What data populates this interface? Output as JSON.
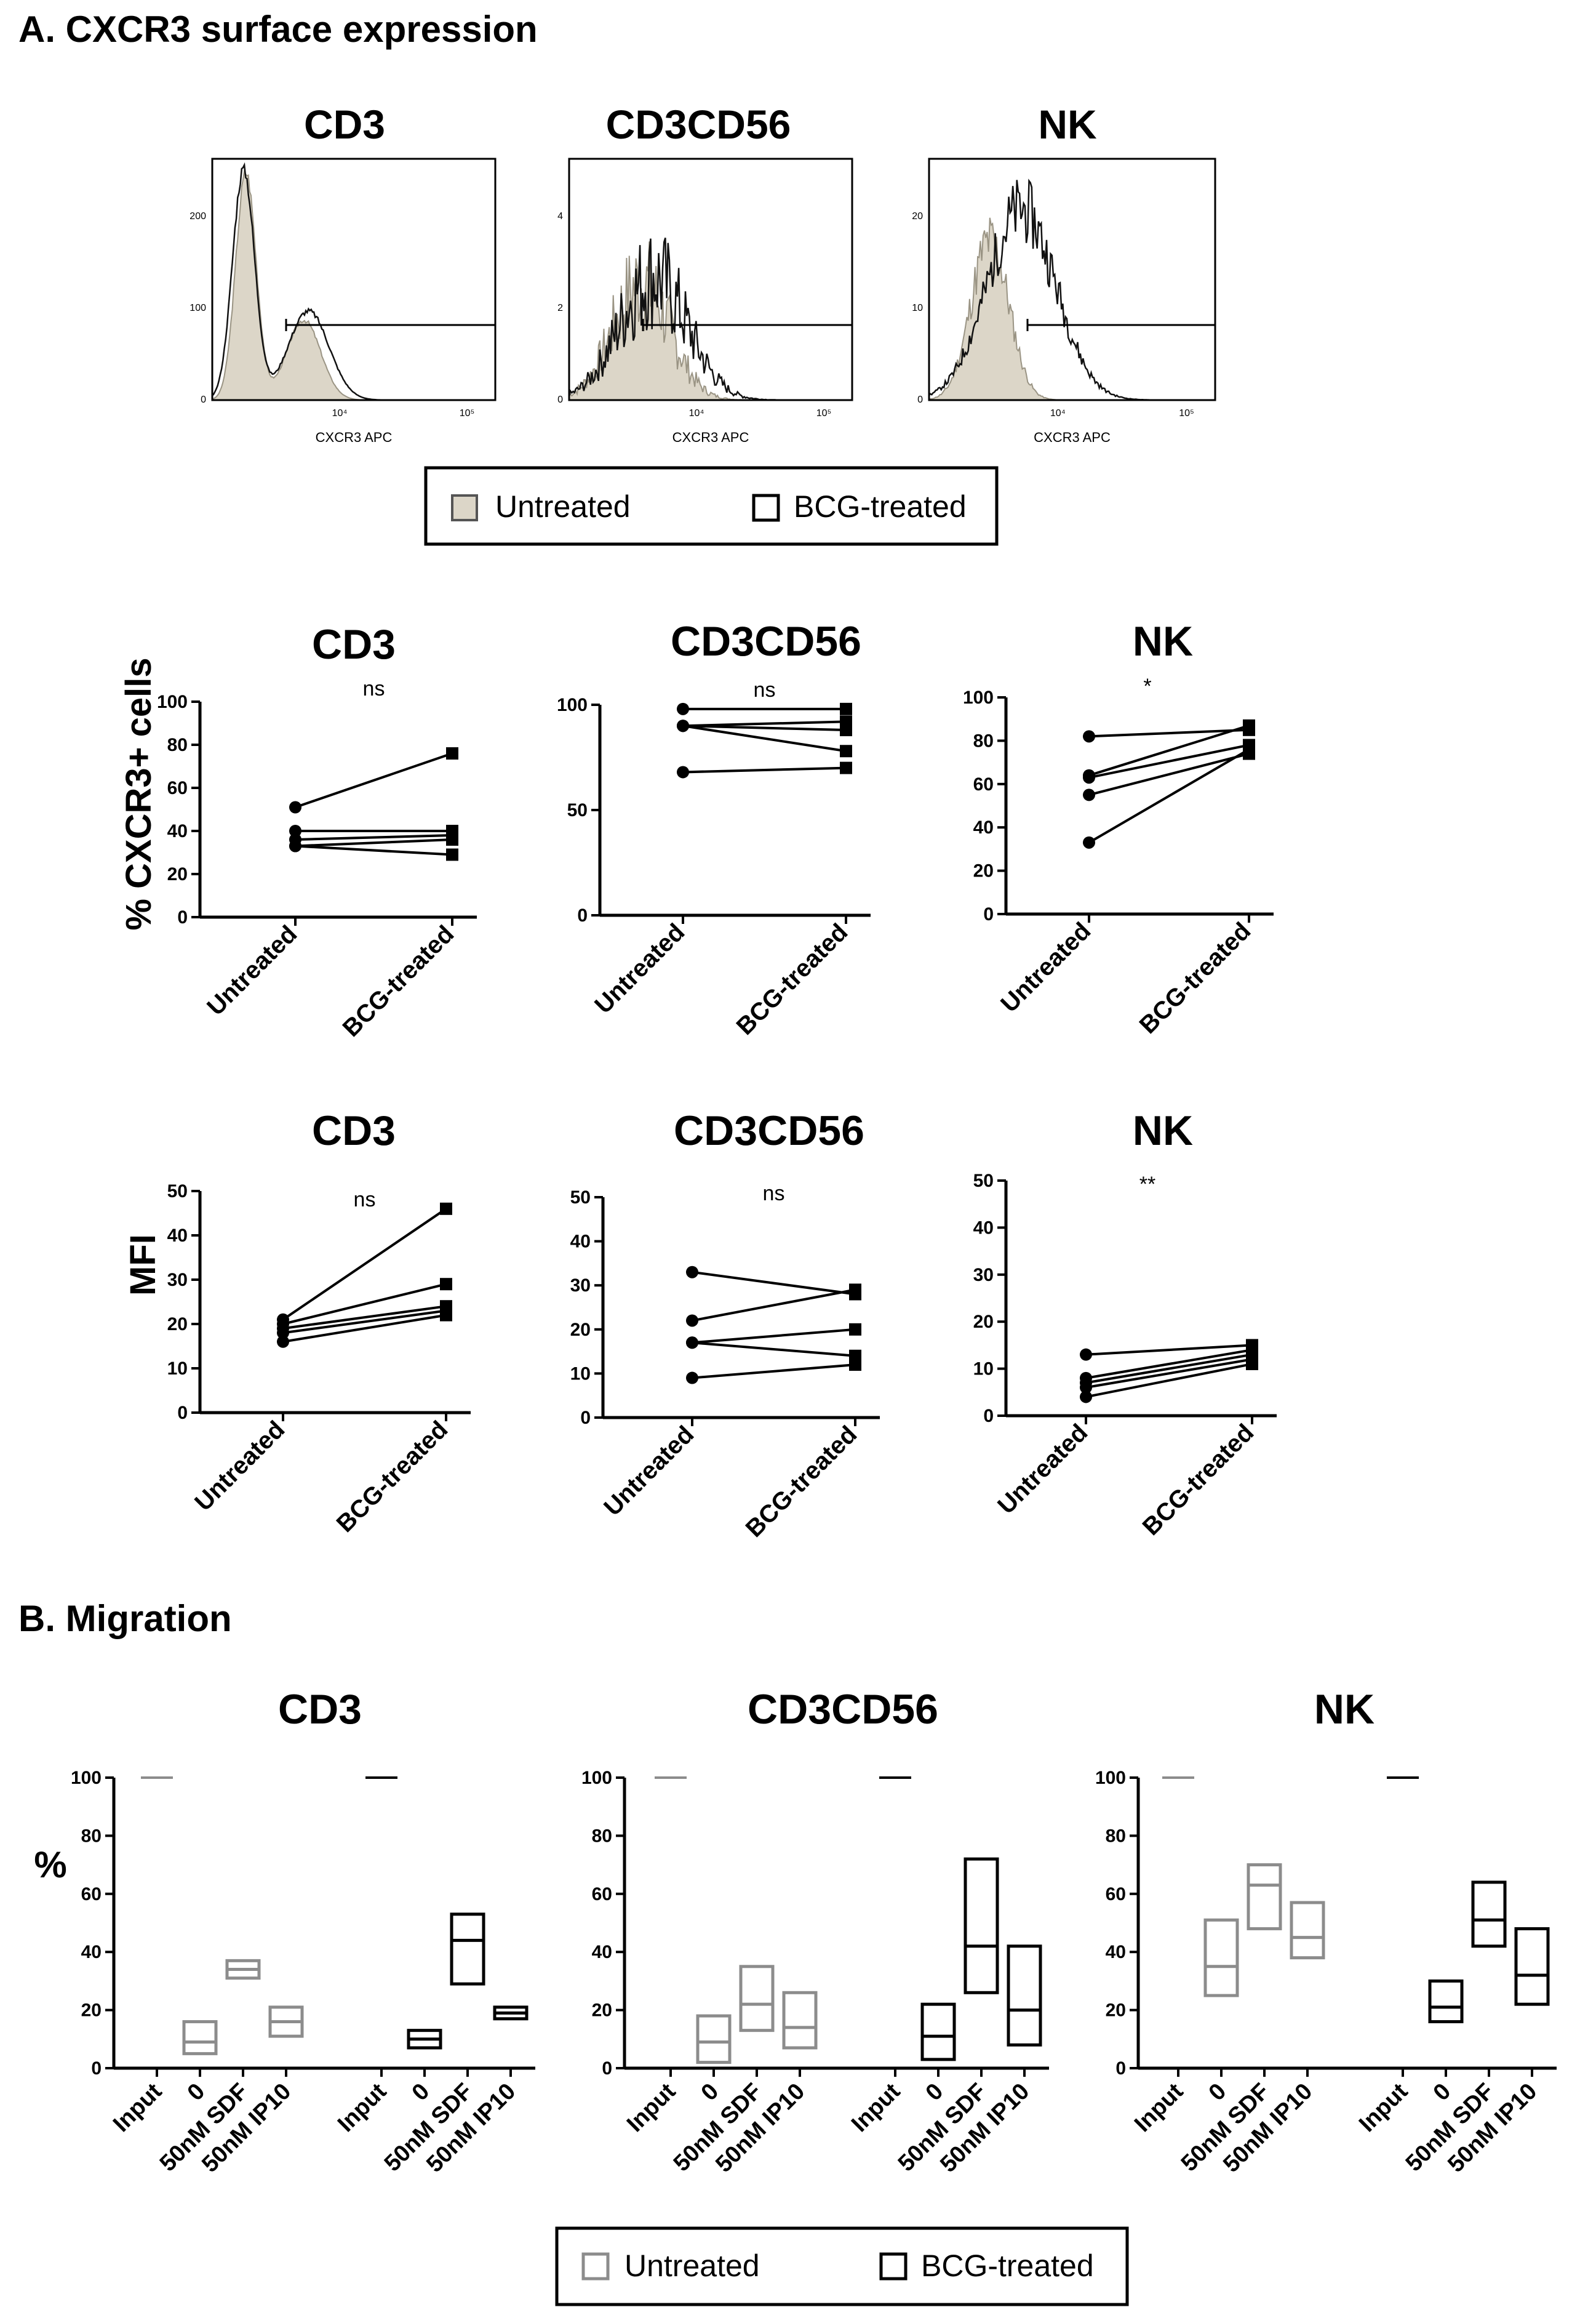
{
  "sections": {
    "a_title": "A. CXCR3 surface expression",
    "b_title": "B. Migration"
  },
  "flow": {
    "panels": [
      {
        "name": "CD3",
        "xlabel": "CXCR3 APC",
        "yticks": [
          "0",
          "100",
          "200"
        ],
        "xticks": [
          "10⁴",
          "10⁵"
        ]
      },
      {
        "name": "CD3CD56",
        "xlabel": "CXCR3 APC",
        "yticks": [
          "0",
          "2",
          "4"
        ],
        "xticks": [
          "10⁴",
          "10⁵"
        ]
      },
      {
        "name": "NK",
        "xlabel": "CXCR3 APC",
        "yticks": [
          "0",
          "10",
          "20"
        ],
        "xticks": [
          "10⁴",
          "10⁵"
        ]
      }
    ],
    "legend": {
      "untreated": "Untreated",
      "treated": "BCG-treated"
    }
  },
  "colors": {
    "untreated_fill": "#dcd6c8",
    "untreated_box": "#8c8c8c",
    "treated": "#000000"
  },
  "chart_data": [
    {
      "type": "line",
      "row": "percent",
      "title": "CD3",
      "ylabel": "% CXCR3+ cells",
      "sig": "ns",
      "categories": [
        "Untreated",
        "BCG-treated"
      ],
      "ylim": [
        0,
        100
      ],
      "yticks": [
        0,
        20,
        40,
        60,
        80,
        100
      ],
      "series": [
        {
          "values": [
            51,
            76
          ]
        },
        {
          "values": [
            40,
            40
          ]
        },
        {
          "values": [
            36,
            38
          ]
        },
        {
          "values": [
            33,
            36
          ]
        },
        {
          "values": [
            33,
            29
          ]
        }
      ]
    },
    {
      "type": "line",
      "row": "percent",
      "title": "CD3CD56",
      "ylabel": "",
      "sig": "ns",
      "categories": [
        "Untreated",
        "BCG-treated"
      ],
      "ylim": [
        0,
        100
      ],
      "yticks": [
        0,
        50,
        100
      ],
      "series": [
        {
          "values": [
            98,
            98
          ]
        },
        {
          "values": [
            90,
            92
          ]
        },
        {
          "values": [
            90,
            88
          ]
        },
        {
          "values": [
            90,
            78
          ]
        },
        {
          "values": [
            68,
            70
          ]
        }
      ]
    },
    {
      "type": "line",
      "row": "percent",
      "title": "NK",
      "ylabel": "",
      "sig": "*",
      "categories": [
        "Untreated",
        "BCG-treated"
      ],
      "ylim": [
        0,
        100
      ],
      "yticks": [
        0,
        20,
        40,
        60,
        80,
        100
      ],
      "series": [
        {
          "values": [
            82,
            85
          ]
        },
        {
          "values": [
            64,
            87
          ]
        },
        {
          "values": [
            63,
            78
          ]
        },
        {
          "values": [
            55,
            74
          ]
        },
        {
          "values": [
            33,
            76
          ]
        }
      ]
    },
    {
      "type": "line",
      "row": "mfi",
      "title": "CD3",
      "ylabel": "MFI",
      "sig": "ns",
      "categories": [
        "Untreated",
        "BCG-treated"
      ],
      "ylim": [
        0,
        50
      ],
      "yticks": [
        0,
        10,
        20,
        30,
        40,
        50
      ],
      "series": [
        {
          "values": [
            21,
            46
          ]
        },
        {
          "values": [
            20,
            29
          ]
        },
        {
          "values": [
            19,
            24
          ]
        },
        {
          "values": [
            18,
            23
          ]
        },
        {
          "values": [
            16,
            22
          ]
        }
      ]
    },
    {
      "type": "line",
      "row": "mfi",
      "title": "CD3CD56",
      "ylabel": "",
      "sig": "ns",
      "categories": [
        "Untreated",
        "BCG-treated"
      ],
      "ylim": [
        0,
        50
      ],
      "yticks": [
        0,
        10,
        20,
        30,
        40,
        50
      ],
      "series": [
        {
          "values": [
            33,
            28
          ]
        },
        {
          "values": [
            22,
            29
          ]
        },
        {
          "values": [
            17,
            20
          ]
        },
        {
          "values": [
            17,
            14
          ]
        },
        {
          "values": [
            9,
            12
          ]
        }
      ]
    },
    {
      "type": "line",
      "row": "mfi",
      "title": "NK",
      "ylabel": "",
      "sig": "**",
      "categories": [
        "Untreated",
        "BCG-treated"
      ],
      "ylim": [
        0,
        50
      ],
      "yticks": [
        0,
        10,
        20,
        30,
        40,
        50
      ],
      "series": [
        {
          "values": [
            13,
            15
          ]
        },
        {
          "values": [
            8,
            14
          ]
        },
        {
          "values": [
            7,
            13
          ]
        },
        {
          "values": [
            6,
            12
          ]
        },
        {
          "values": [
            4,
            11
          ]
        }
      ]
    },
    {
      "type": "box",
      "row": "migration",
      "title": "CD3",
      "ylabel": "%",
      "categories": [
        "Input",
        "0",
        "50nM SDF",
        "50nM IP10",
        "Input",
        "0",
        "50nM SDF",
        "50nM IP10"
      ],
      "groups": [
        "untreated",
        "untreated",
        "untreated",
        "untreated",
        "treated",
        "treated",
        "treated",
        "treated"
      ],
      "ylim": [
        0,
        100
      ],
      "yticks": [
        0,
        20,
        40,
        60,
        80,
        100
      ],
      "boxes": [
        {
          "min": 100,
          "median": 100,
          "max": 100
        },
        {
          "min": 5,
          "median": 9,
          "max": 16
        },
        {
          "min": 31,
          "median": 34,
          "max": 37
        },
        {
          "min": 11,
          "median": 16,
          "max": 21
        },
        {
          "min": 100,
          "median": 100,
          "max": 100
        },
        {
          "min": 7,
          "median": 10,
          "max": 13
        },
        {
          "min": 29,
          "median": 44,
          "max": 53
        },
        {
          "min": 17,
          "median": 19,
          "max": 21
        }
      ]
    },
    {
      "type": "box",
      "row": "migration",
      "title": "CD3CD56",
      "ylabel": "",
      "categories": [
        "Input",
        "0",
        "50nM SDF",
        "50nM IP10",
        "Input",
        "0",
        "50nM SDF",
        "50nM IP10"
      ],
      "groups": [
        "untreated",
        "untreated",
        "untreated",
        "untreated",
        "treated",
        "treated",
        "treated",
        "treated"
      ],
      "ylim": [
        0,
        100
      ],
      "yticks": [
        0,
        20,
        40,
        60,
        80,
        100
      ],
      "boxes": [
        {
          "min": 100,
          "median": 100,
          "max": 100
        },
        {
          "min": 2,
          "median": 9,
          "max": 18
        },
        {
          "min": 13,
          "median": 22,
          "max": 35
        },
        {
          "min": 7,
          "median": 14,
          "max": 26
        },
        {
          "min": 100,
          "median": 100,
          "max": 100
        },
        {
          "min": 3,
          "median": 11,
          "max": 22
        },
        {
          "min": 26,
          "median": 42,
          "max": 72
        },
        {
          "min": 8,
          "median": 20,
          "max": 42
        }
      ]
    },
    {
      "type": "box",
      "row": "migration",
      "title": "NK",
      "ylabel": "",
      "categories": [
        "Input",
        "0",
        "50nM SDF",
        "50nM IP10",
        "Input",
        "0",
        "50nM SDF",
        "50nM IP10"
      ],
      "groups": [
        "untreated",
        "untreated",
        "untreated",
        "untreated",
        "treated",
        "treated",
        "treated",
        "treated"
      ],
      "ylim": [
        0,
        100
      ],
      "yticks": [
        0,
        20,
        40,
        60,
        80,
        100
      ],
      "boxes": [
        {
          "min": 100,
          "median": 100,
          "max": 100
        },
        {
          "min": 25,
          "median": 35,
          "max": 51
        },
        {
          "min": 48,
          "median": 63,
          "max": 70
        },
        {
          "min": 38,
          "median": 45,
          "max": 57
        },
        {
          "min": 100,
          "median": 100,
          "max": 100
        },
        {
          "min": 16,
          "median": 21,
          "max": 30
        },
        {
          "min": 42,
          "median": 51,
          "max": 64
        },
        {
          "min": 22,
          "median": 32,
          "max": 48
        }
      ]
    }
  ],
  "legend_bottom": {
    "untreated": "Untreated",
    "treated": "BCG-treated"
  }
}
